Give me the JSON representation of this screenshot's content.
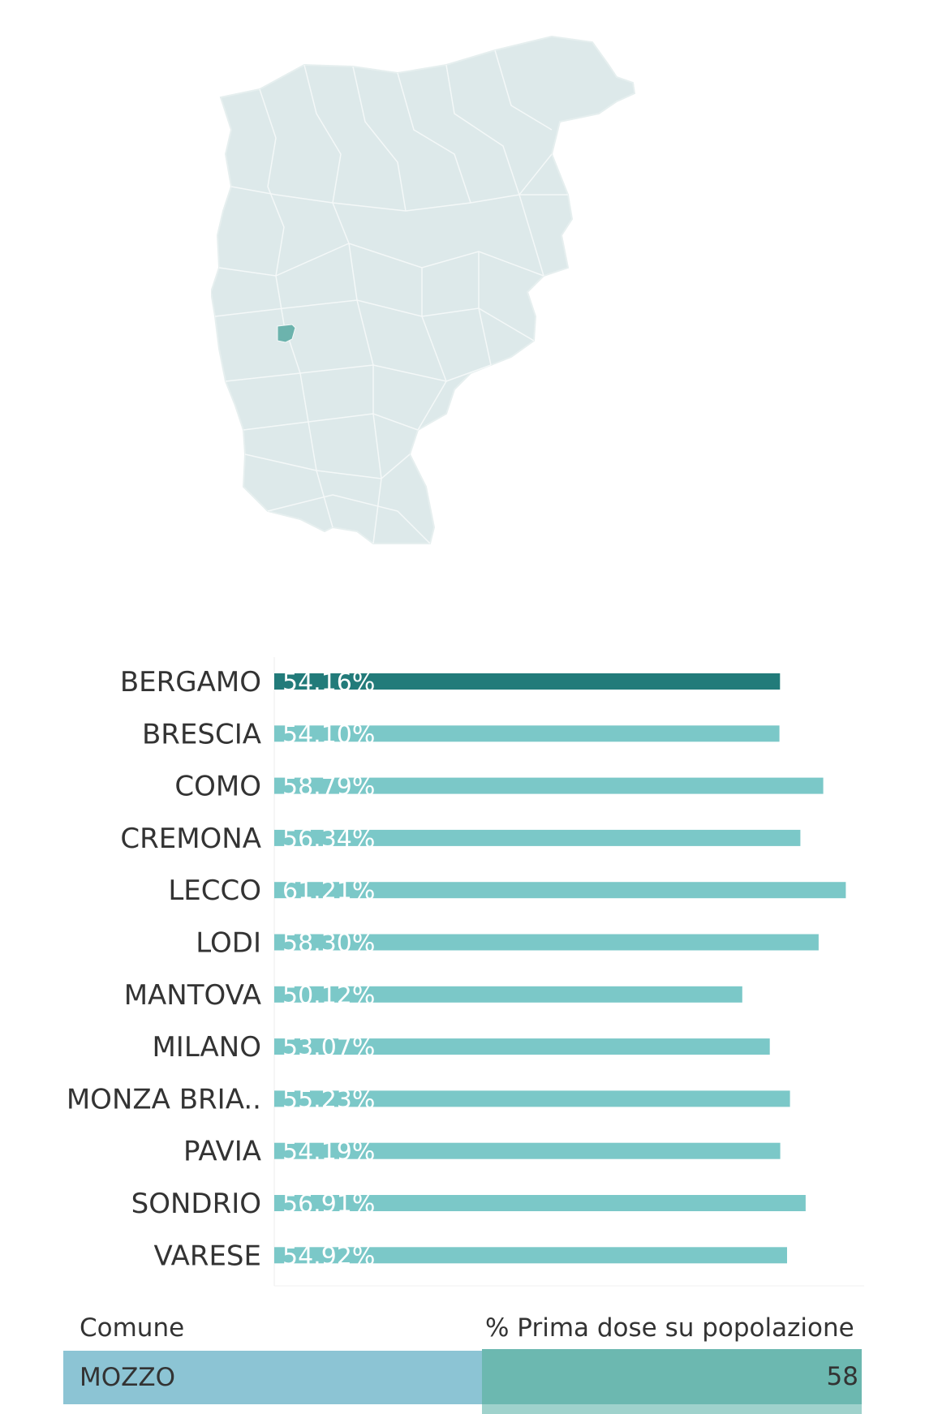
{
  "colors": {
    "map_fill": "#dde9ea",
    "map_stroke": "#f4f8f8",
    "map_highlight": "#6cb3ad",
    "bar_highlight": "#227b7a",
    "bar_default": "#7bc8c8",
    "comune_cell": "#8cc4d4",
    "pct_cell": "#6cb8b0"
  },
  "map": {
    "highlighted_area": "MOZZO"
  },
  "chart_data": {
    "type": "bar",
    "orientation": "horizontal",
    "categories": [
      "BERGAMO",
      "BRESCIA",
      "COMO",
      "CREMONA",
      "LECCO",
      "LODI",
      "MANTOVA",
      "MILANO",
      "MONZA BRIA..",
      "PAVIA",
      "SONDRIO",
      "VARESE"
    ],
    "values": [
      54.16,
      54.1,
      58.79,
      56.34,
      61.21,
      58.3,
      50.12,
      53.07,
      55.23,
      54.19,
      56.91,
      54.92
    ],
    "value_labels": [
      "54.16%",
      "54.10%",
      "58.79%",
      "56.34%",
      "61.21%",
      "58.30%",
      "50.12%",
      "53.07%",
      "55.23%",
      "54.19%",
      "56.91%",
      "54.92%"
    ],
    "highlighted_category": "BERGAMO",
    "xlim": [
      0,
      63
    ],
    "grid": false,
    "legend": "none"
  },
  "table": {
    "headers": [
      "Comune",
      "% Prima dose su popolazione T"
    ],
    "rows": [
      {
        "comune": "MOZZO",
        "pct": "58"
      }
    ]
  }
}
